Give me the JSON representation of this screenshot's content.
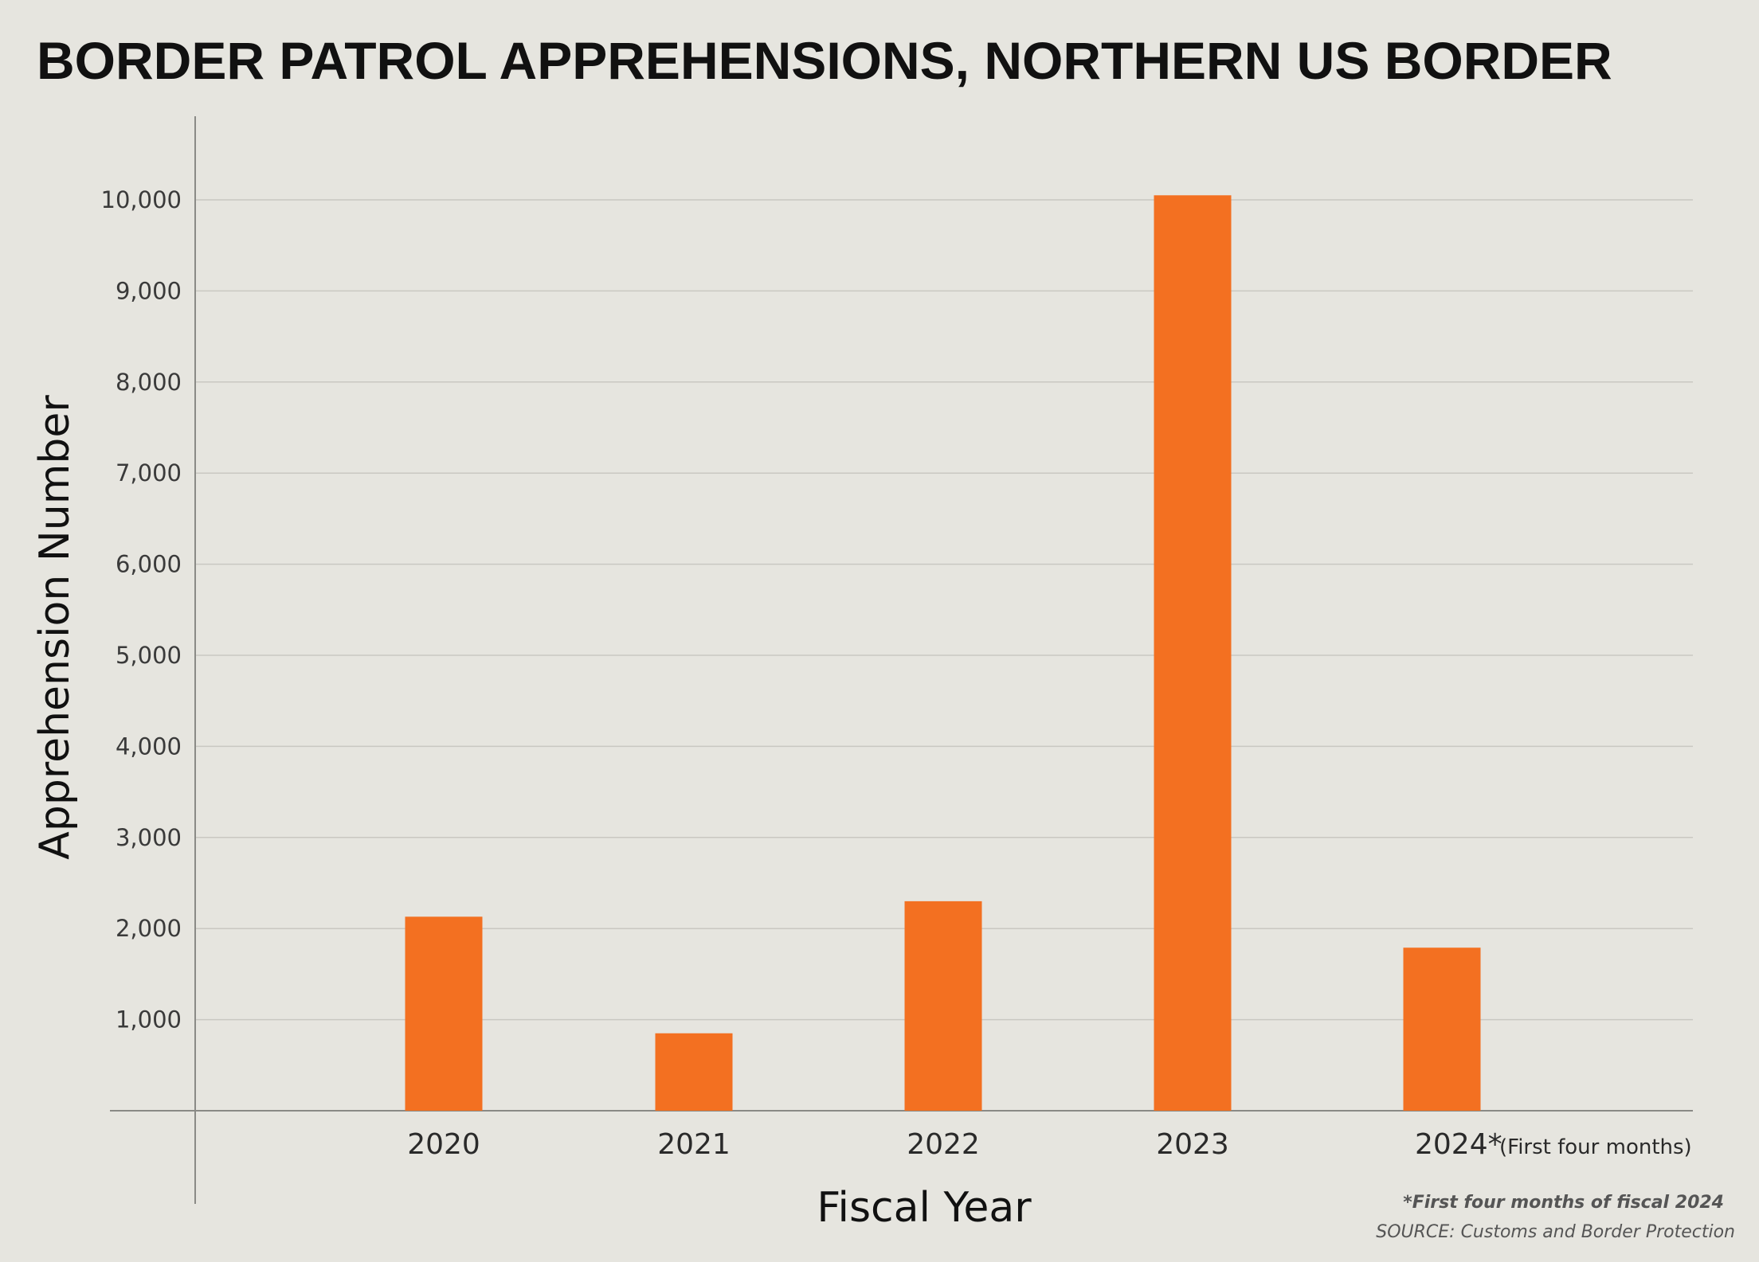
{
  "chart_data": {
    "type": "bar",
    "title": "BORDER PATROL APPREHENSIONS, NORTHERN US BORDER",
    "xlabel": "Fiscal Year",
    "ylabel": "Apprehension Number",
    "categories": [
      "2020",
      "2021",
      "2022",
      "2023",
      "2024*"
    ],
    "category_notes": [
      "",
      "",
      "",
      "",
      "(First four months)"
    ],
    "values": [
      2130,
      850,
      2300,
      10050,
      1790
    ],
    "ylim": [
      0,
      10000
    ],
    "yticks": [
      1000,
      2000,
      3000,
      4000,
      5000,
      6000,
      7000,
      8000,
      9000,
      10000
    ],
    "ytick_labels": [
      "1,000",
      "2,000",
      "3,000",
      "4,000",
      "5,000",
      "6,000",
      "7,000",
      "8,000",
      "9,000",
      "10,000"
    ],
    "grid": true,
    "bar_color": "#f37021",
    "footnote": "*First four months of fiscal 2024",
    "source": "SOURCE: Customs and Border Protection"
  }
}
